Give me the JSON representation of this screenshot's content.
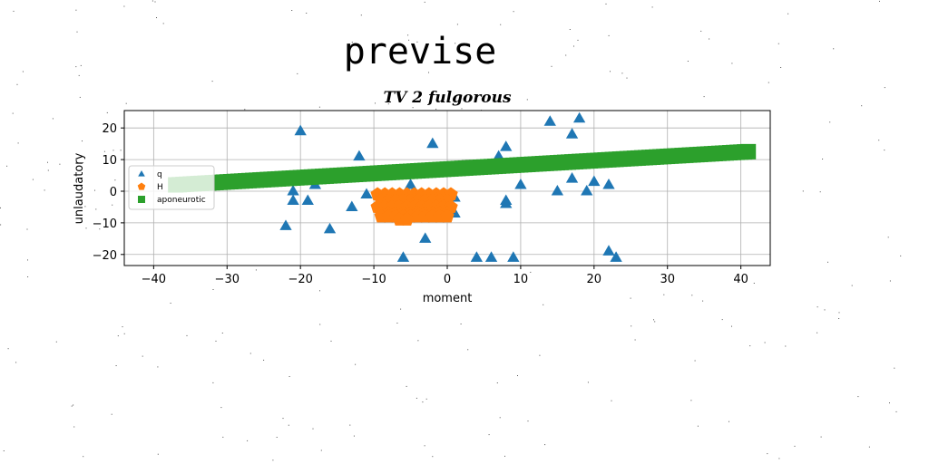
{
  "chart_data": {
    "type": "scatter",
    "suptitle": "previse",
    "title": "TV 2 fulgorous",
    "xlabel": "moment",
    "ylabel": "unlaudatory",
    "xlim": [
      -44,
      44
    ],
    "ylim": [
      -23.5,
      25.5
    ],
    "xticks": [
      -40,
      -30,
      -20,
      -10,
      0,
      10,
      20,
      30,
      40
    ],
    "yticks": [
      -20,
      -10,
      0,
      10,
      20
    ],
    "grid": true,
    "legend_position": "center-left",
    "series": [
      {
        "name": "q",
        "marker": "triangle",
        "color": "#1f77b4",
        "x": [
          -20,
          14,
          18,
          -12,
          -2,
          8,
          17,
          21,
          -1,
          7,
          -5,
          -18,
          -21,
          -21,
          -19,
          -11,
          -13,
          1,
          8,
          8,
          10,
          15,
          19,
          20,
          22,
          17,
          22,
          -16,
          -22,
          -3,
          -6,
          4,
          6,
          9,
          23,
          1,
          -4
        ],
        "y": [
          19,
          22,
          23,
          11,
          15,
          14,
          18,
          9,
          6,
          11,
          2,
          2,
          0,
          -3,
          -3,
          -1,
          -5,
          -2,
          -3,
          -4,
          2,
          0,
          0,
          3,
          2,
          4,
          -19,
          -12,
          -11,
          -15,
          -21,
          -21,
          -21,
          -21,
          -21,
          -7,
          -8
        ]
      },
      {
        "name": "H",
        "marker": "pentagon",
        "color": "#ff7f0e",
        "x": [
          -9.5,
          -8.5,
          -7.5,
          -6.5,
          -5.5,
          -4.5,
          -3.5,
          -2.5,
          -1.5,
          -0.5,
          0.5,
          -9,
          -8,
          -7,
          -6,
          -5,
          -4,
          -3,
          -2,
          -1,
          0,
          -9.5,
          -8.5,
          -7.5,
          -6.5,
          -5.5,
          -4.5,
          -3.5,
          -2.5,
          -1.5,
          -0.5,
          0.5,
          -9,
          -8,
          -7,
          -6,
          -5,
          -4,
          -3,
          -2,
          -1,
          0,
          -9,
          -8,
          -7,
          -6,
          -5,
          -4,
          -3,
          -2,
          -1,
          0,
          -6.5,
          -5.5
        ],
        "y": [
          -1,
          -1,
          -1,
          -1,
          -1,
          -1,
          -1,
          -1,
          -1,
          -1,
          -1,
          -3,
          -3,
          -3,
          -3,
          -3,
          -3,
          -3,
          -3,
          -3,
          -3,
          -5,
          -5,
          -5,
          -5,
          -5,
          -5,
          -5,
          -5,
          -5,
          -5,
          -5,
          -7,
          -7,
          -7,
          -7,
          -7,
          -7,
          -7,
          -7,
          -7,
          -7,
          -8,
          -8,
          -8,
          -8,
          -8,
          -8,
          -8,
          -8,
          -8,
          -8,
          -9,
          -9
        ]
      },
      {
        "name": "aponeurotic",
        "marker": "square",
        "color": "#2ca02c",
        "x_range": [
          -37,
          41
        ],
        "x_step": 0.5,
        "y_start": 2,
        "y_end": 12.5
      }
    ]
  }
}
